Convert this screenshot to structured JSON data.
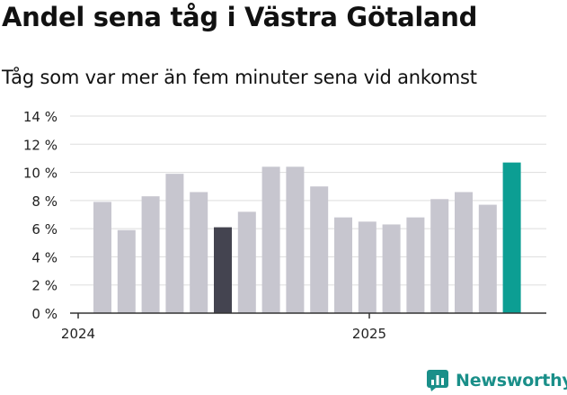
{
  "title": "Andel sena tåg i Västra Götaland",
  "subtitle": "Tåg som var mer än fem minuter sena vid ankomst",
  "brand": {
    "name": "Newsworthy",
    "icon": "newsworthy-chart-logo-icon",
    "color": "#1a8f89"
  },
  "colors": {
    "default_bar": "#c7c6cf",
    "highlight_dark": "#444450",
    "highlight_latest": "#0c9e93",
    "grid": "#dddddd",
    "axis": "#333333"
  },
  "chart_data": {
    "type": "bar",
    "title": "Andel sena tåg i Västra Götaland",
    "subtitle": "Tåg som var mer än fem minuter sena vid ankomst",
    "xlabel": "",
    "ylabel": "",
    "ylim": [
      0,
      14
    ],
    "y_ticks": [
      "0 %",
      "2 %",
      "4 %",
      "6 %",
      "8 %",
      "10 %",
      "12 %",
      "14 %"
    ],
    "x_tick_labels": [
      "2024",
      "2025"
    ],
    "grid": true,
    "legend": "none",
    "values": [
      7.9,
      5.9,
      8.3,
      9.9,
      8.6,
      6.1,
      7.2,
      10.4,
      10.4,
      9.0,
      6.8,
      6.5,
      6.3,
      6.8,
      8.1,
      8.6,
      7.7,
      10.7
    ],
    "highlight": [
      "default",
      "default",
      "default",
      "default",
      "default",
      "dark",
      "default",
      "default",
      "default",
      "default",
      "default",
      "default",
      "default",
      "default",
      "default",
      "default",
      "default",
      "latest"
    ]
  }
}
